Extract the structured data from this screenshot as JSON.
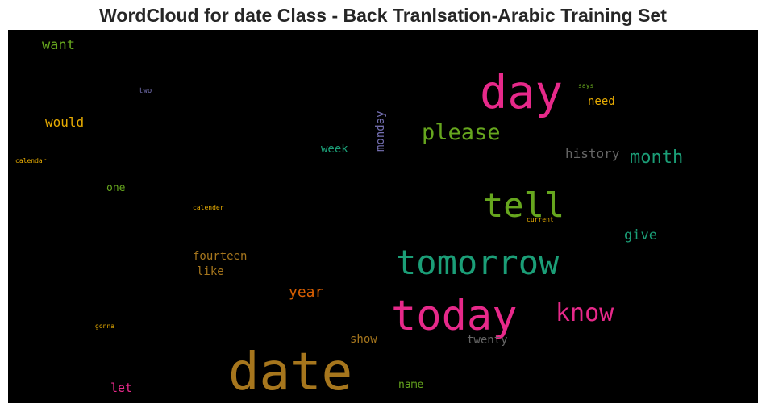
{
  "title": "WordCloud for date Class - Back Tranlsation-Arabic Training Set",
  "words": [
    {
      "text": "date",
      "color": "#a6761d"
    },
    {
      "text": "today",
      "color": "#e7298a"
    },
    {
      "text": "tomorrow",
      "color": "#1b9e77"
    },
    {
      "text": "day",
      "color": "#e7298a"
    },
    {
      "text": "tell",
      "color": "#66a61e"
    },
    {
      "text": "please",
      "color": "#66a61e"
    },
    {
      "text": "know",
      "color": "#e7298a"
    },
    {
      "text": "month",
      "color": "#1b9e77"
    },
    {
      "text": "year",
      "color": "#d95f02"
    },
    {
      "text": "give",
      "color": "#1b9e77"
    },
    {
      "text": "history",
      "color": "#666666"
    },
    {
      "text": "want",
      "color": "#66a61e"
    },
    {
      "text": "would",
      "color": "#e6ab02"
    },
    {
      "text": "week",
      "color": "#1b9e77"
    },
    {
      "text": "monday",
      "color": "#7570b3"
    },
    {
      "text": "need",
      "color": "#e6ab02"
    },
    {
      "text": "one",
      "color": "#66a61e"
    },
    {
      "text": "fourteen",
      "color": "#a6761d"
    },
    {
      "text": "like",
      "color": "#a6761d"
    },
    {
      "text": "show",
      "color": "#a6761d"
    },
    {
      "text": "twenty",
      "color": "#666666"
    },
    {
      "text": "let",
      "color": "#e7298a"
    },
    {
      "text": "name",
      "color": "#66a61e"
    },
    {
      "text": "two",
      "color": "#7570b3"
    },
    {
      "text": "says",
      "color": "#66a61e"
    },
    {
      "text": "calendar",
      "color": "#e6ab02"
    },
    {
      "text": "calender",
      "color": "#e6ab02"
    },
    {
      "text": "current",
      "color": "#e6ab02"
    },
    {
      "text": "gonna",
      "color": "#e6ab02"
    }
  ]
}
